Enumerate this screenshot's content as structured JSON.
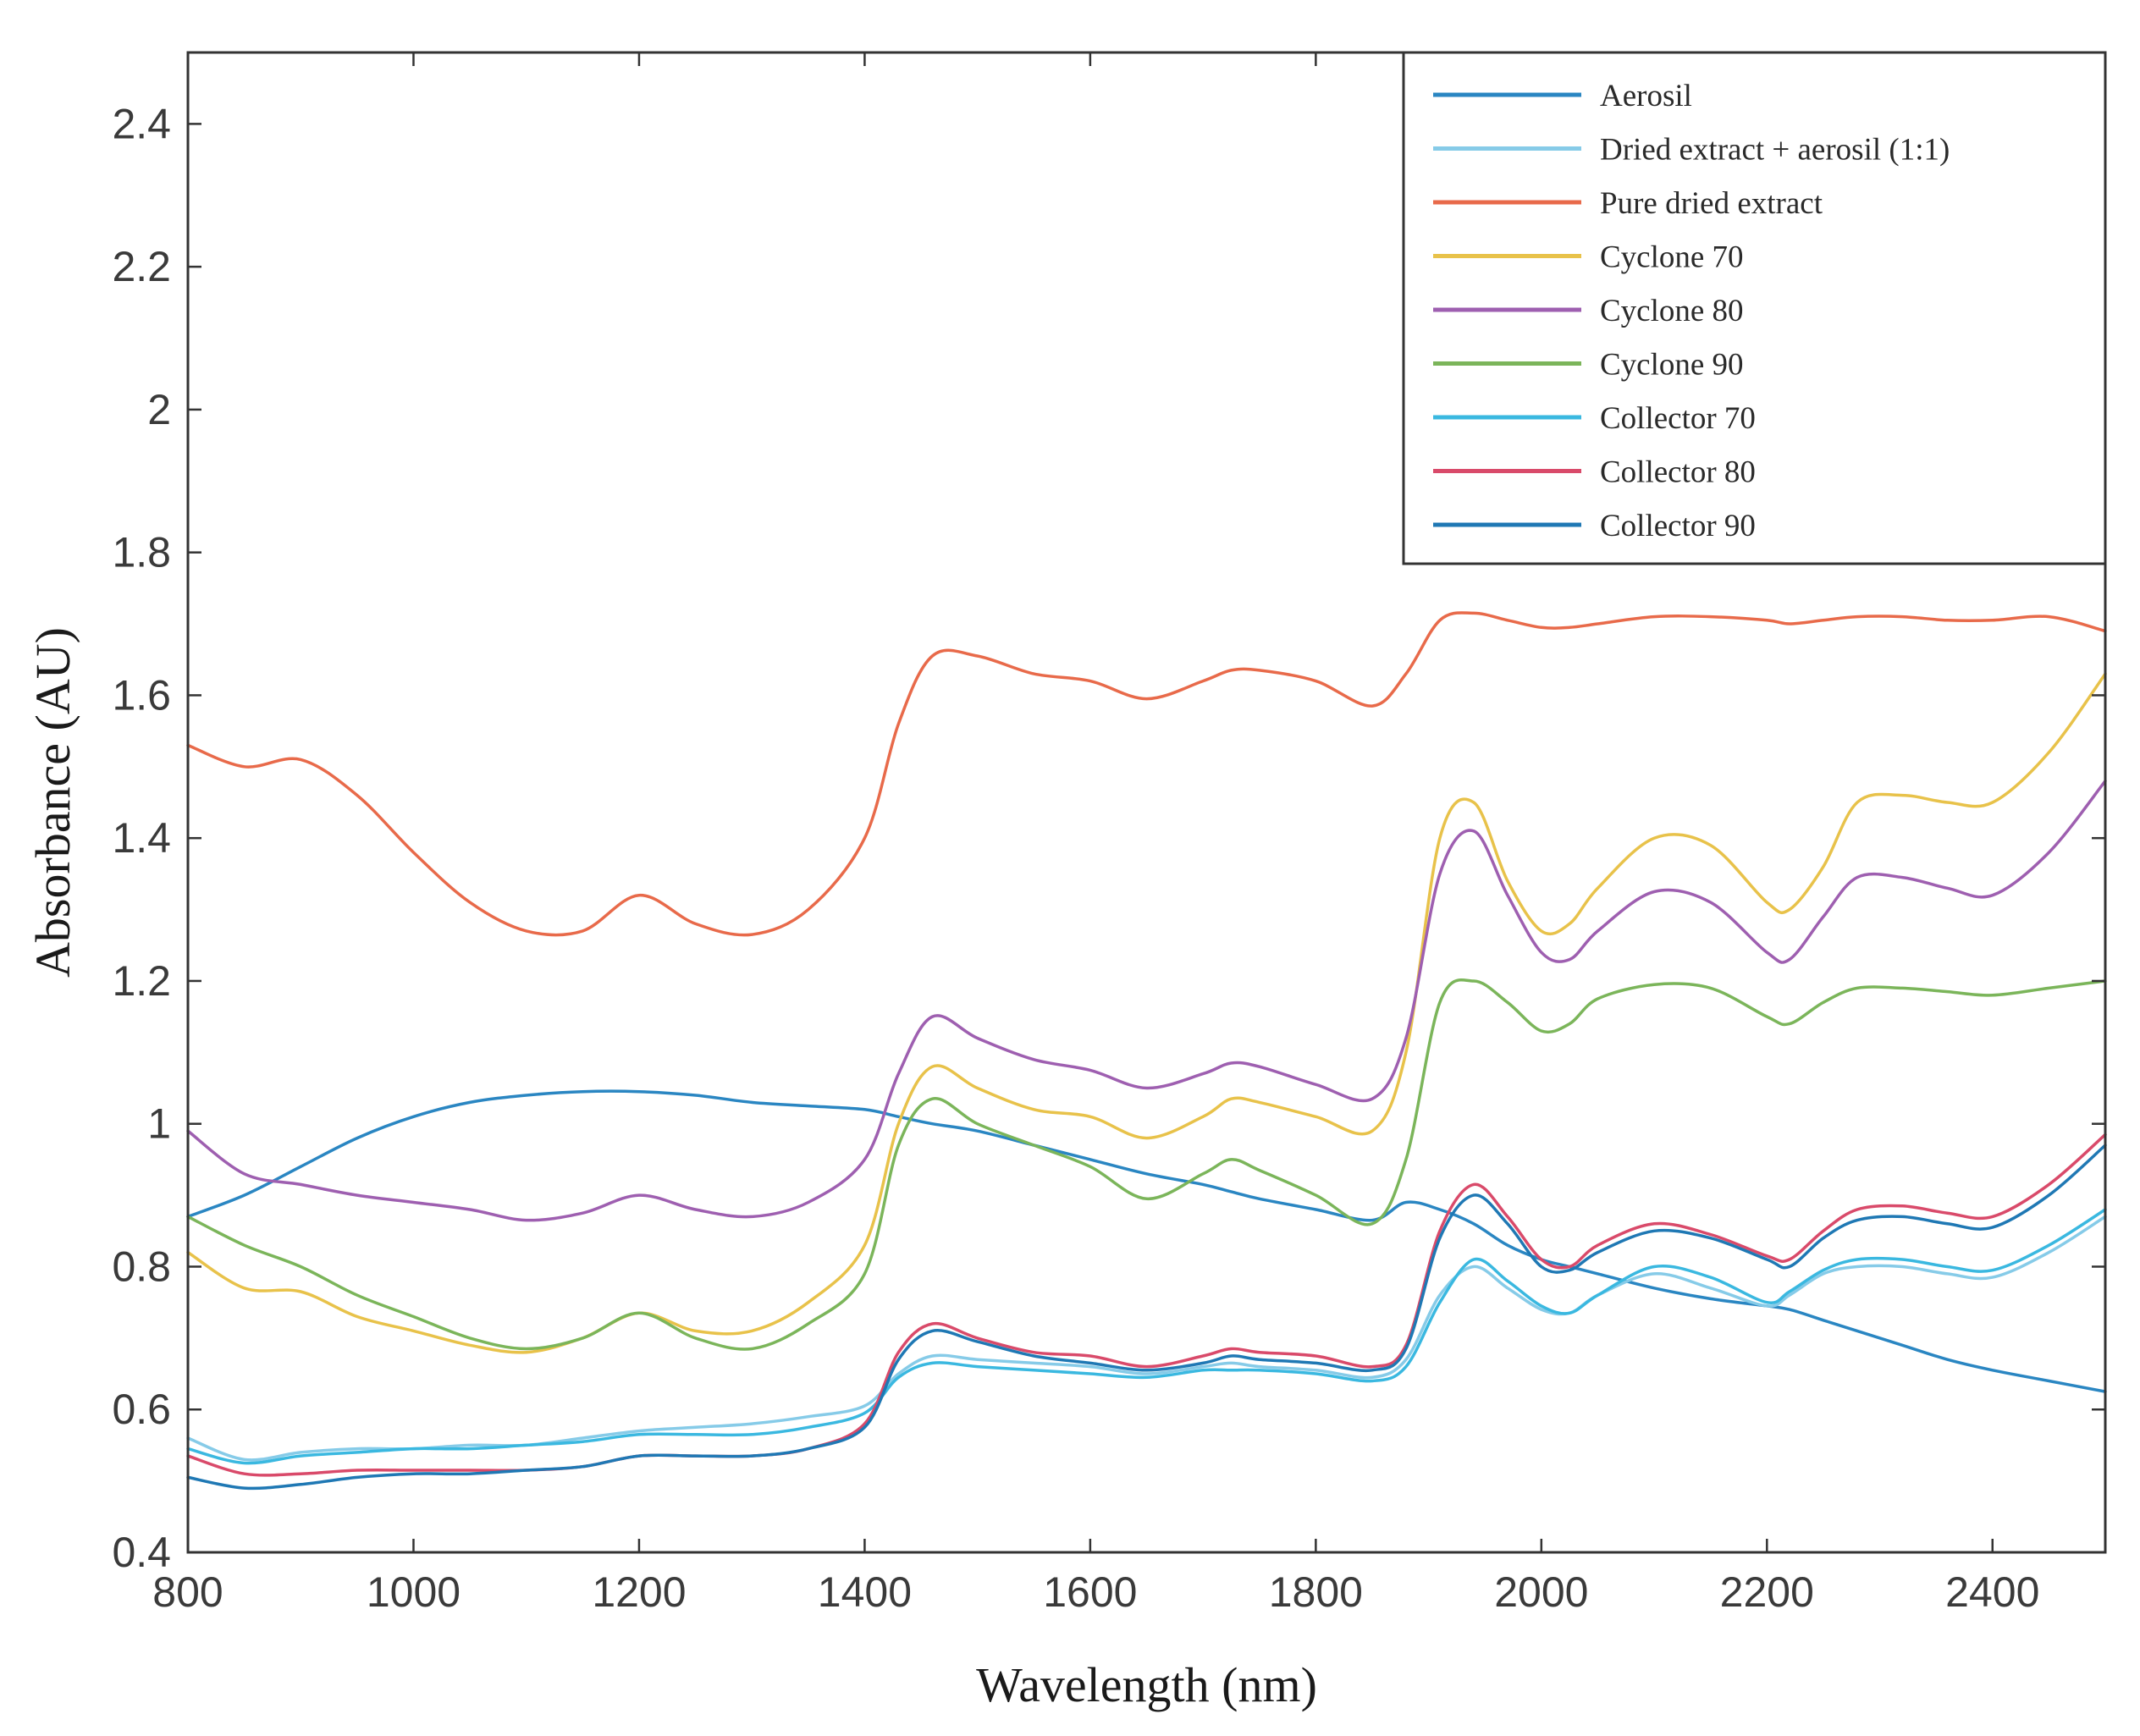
{
  "chart_data": {
    "type": "line",
    "title": "",
    "xlabel": "Wavelength (nm)",
    "ylabel": "Absorbance (AU)",
    "xlim": [
      800,
      2500
    ],
    "ylim": [
      0.4,
      2.5
    ],
    "xticks": [
      800,
      1000,
      1200,
      1400,
      1600,
      1800,
      2000,
      2200,
      2400
    ],
    "xtick_labels": [
      "800",
      "1000",
      "1200",
      "1400",
      "1600",
      "1800",
      "2000",
      "2200",
      "2400"
    ],
    "yticks": [
      0.4,
      0.6,
      0.8,
      1.0,
      1.2,
      1.4,
      1.6,
      1.8,
      2.0,
      2.2,
      2.4
    ],
    "ytick_labels": [
      "0.4",
      "0.6",
      "0.8",
      "1",
      "1.2",
      "1.4",
      "1.6",
      "1.8",
      "2",
      "2.2",
      "2.4"
    ],
    "grid": false,
    "legend_position": "top-right",
    "x": [
      800,
      850,
      900,
      950,
      1000,
      1050,
      1100,
      1150,
      1200,
      1250,
      1300,
      1350,
      1400,
      1430,
      1460,
      1500,
      1550,
      1600,
      1650,
      1700,
      1725,
      1750,
      1800,
      1850,
      1880,
      1910,
      1940,
      1970,
      2000,
      2025,
      2050,
      2100,
      2150,
      2200,
      2220,
      2250,
      2280,
      2320,
      2360,
      2400,
      2450,
      2500
    ],
    "series": [
      {
        "name": "Aerosil",
        "color": "#2a86c2",
        "values": [
          0.87,
          0.9,
          0.94,
          0.98,
          1.01,
          1.03,
          1.04,
          1.045,
          1.045,
          1.04,
          1.03,
          1.025,
          1.02,
          1.01,
          1.0,
          0.99,
          0.97,
          0.95,
          0.93,
          0.915,
          0.905,
          0.895,
          0.88,
          0.865,
          0.89,
          0.88,
          0.86,
          0.83,
          0.81,
          0.8,
          0.79,
          0.77,
          0.755,
          0.745,
          0.74,
          0.725,
          0.71,
          0.69,
          0.67,
          0.655,
          0.64,
          0.625
        ]
      },
      {
        "name": "Dried extract + aerosil (1:1)",
        "color": "#86cbe8",
        "values": [
          0.56,
          0.53,
          0.54,
          0.545,
          0.545,
          0.55,
          0.55,
          0.56,
          0.57,
          0.575,
          0.58,
          0.59,
          0.605,
          0.65,
          0.675,
          0.67,
          0.665,
          0.66,
          0.65,
          0.66,
          0.665,
          0.66,
          0.655,
          0.645,
          0.67,
          0.76,
          0.8,
          0.77,
          0.74,
          0.735,
          0.76,
          0.79,
          0.77,
          0.745,
          0.76,
          0.79,
          0.8,
          0.8,
          0.79,
          0.785,
          0.82,
          0.87
        ]
      },
      {
        "name": "Pure dried extract",
        "color": "#e86a4a",
        "values": [
          1.53,
          1.5,
          1.51,
          1.46,
          1.38,
          1.31,
          1.27,
          1.27,
          1.32,
          1.28,
          1.265,
          1.3,
          1.4,
          1.56,
          1.655,
          1.655,
          1.63,
          1.62,
          1.595,
          1.62,
          1.635,
          1.635,
          1.62,
          1.585,
          1.63,
          1.705,
          1.715,
          1.705,
          1.695,
          1.695,
          1.7,
          1.71,
          1.71,
          1.705,
          1.7,
          1.705,
          1.71,
          1.71,
          1.705,
          1.705,
          1.71,
          1.69
        ]
      },
      {
        "name": "Cyclone 70",
        "color": "#e8c24a",
        "values": [
          0.82,
          0.77,
          0.765,
          0.73,
          0.71,
          0.69,
          0.68,
          0.7,
          0.735,
          0.71,
          0.71,
          0.75,
          0.83,
          1.0,
          1.08,
          1.05,
          1.02,
          1.01,
          0.98,
          1.01,
          1.035,
          1.03,
          1.01,
          0.99,
          1.1,
          1.4,
          1.45,
          1.34,
          1.27,
          1.28,
          1.33,
          1.4,
          1.39,
          1.31,
          1.3,
          1.36,
          1.45,
          1.46,
          1.45,
          1.45,
          1.52,
          1.63
        ]
      },
      {
        "name": "Cyclone 80",
        "color": "#9e5fb0",
        "values": [
          0.99,
          0.93,
          0.915,
          0.9,
          0.89,
          0.88,
          0.865,
          0.875,
          0.9,
          0.88,
          0.87,
          0.89,
          0.95,
          1.07,
          1.15,
          1.12,
          1.09,
          1.075,
          1.05,
          1.07,
          1.085,
          1.08,
          1.055,
          1.035,
          1.12,
          1.35,
          1.41,
          1.32,
          1.24,
          1.23,
          1.27,
          1.325,
          1.31,
          1.24,
          1.23,
          1.29,
          1.345,
          1.345,
          1.33,
          1.32,
          1.38,
          1.48
        ]
      },
      {
        "name": "Cyclone 90",
        "color": "#7bb55a",
        "values": [
          0.87,
          0.83,
          0.8,
          0.76,
          0.73,
          0.7,
          0.685,
          0.7,
          0.735,
          0.7,
          0.685,
          0.72,
          0.79,
          0.97,
          1.035,
          1.0,
          0.97,
          0.94,
          0.895,
          0.93,
          0.95,
          0.935,
          0.9,
          0.86,
          0.95,
          1.17,
          1.2,
          1.17,
          1.13,
          1.14,
          1.175,
          1.195,
          1.19,
          1.15,
          1.14,
          1.17,
          1.19,
          1.19,
          1.185,
          1.18,
          1.19,
          1.2
        ]
      },
      {
        "name": "Collector 70",
        "color": "#3ab8e0",
        "values": [
          0.545,
          0.525,
          0.535,
          0.54,
          0.545,
          0.545,
          0.55,
          0.555,
          0.565,
          0.565,
          0.565,
          0.575,
          0.595,
          0.645,
          0.665,
          0.66,
          0.655,
          0.65,
          0.645,
          0.655,
          0.655,
          0.655,
          0.65,
          0.64,
          0.66,
          0.75,
          0.81,
          0.78,
          0.745,
          0.735,
          0.76,
          0.8,
          0.785,
          0.75,
          0.765,
          0.795,
          0.81,
          0.81,
          0.8,
          0.795,
          0.83,
          0.88
        ]
      },
      {
        "name": "Collector 80",
        "color": "#d94a6a",
        "values": [
          0.535,
          0.51,
          0.51,
          0.515,
          0.515,
          0.515,
          0.515,
          0.52,
          0.535,
          0.535,
          0.535,
          0.545,
          0.58,
          0.68,
          0.72,
          0.7,
          0.68,
          0.675,
          0.66,
          0.675,
          0.685,
          0.68,
          0.675,
          0.66,
          0.69,
          0.85,
          0.915,
          0.87,
          0.81,
          0.8,
          0.83,
          0.86,
          0.845,
          0.815,
          0.81,
          0.85,
          0.88,
          0.885,
          0.875,
          0.87,
          0.915,
          0.985
        ]
      },
      {
        "name": "Collector 90",
        "color": "#1f78b4",
        "values": [
          0.505,
          0.49,
          0.495,
          0.505,
          0.51,
          0.51,
          0.515,
          0.52,
          0.535,
          0.535,
          0.535,
          0.545,
          0.575,
          0.67,
          0.71,
          0.695,
          0.675,
          0.665,
          0.655,
          0.665,
          0.675,
          0.67,
          0.665,
          0.655,
          0.685,
          0.84,
          0.9,
          0.86,
          0.8,
          0.795,
          0.82,
          0.85,
          0.84,
          0.81,
          0.8,
          0.84,
          0.865,
          0.87,
          0.86,
          0.855,
          0.9,
          0.97
        ]
      }
    ]
  }
}
